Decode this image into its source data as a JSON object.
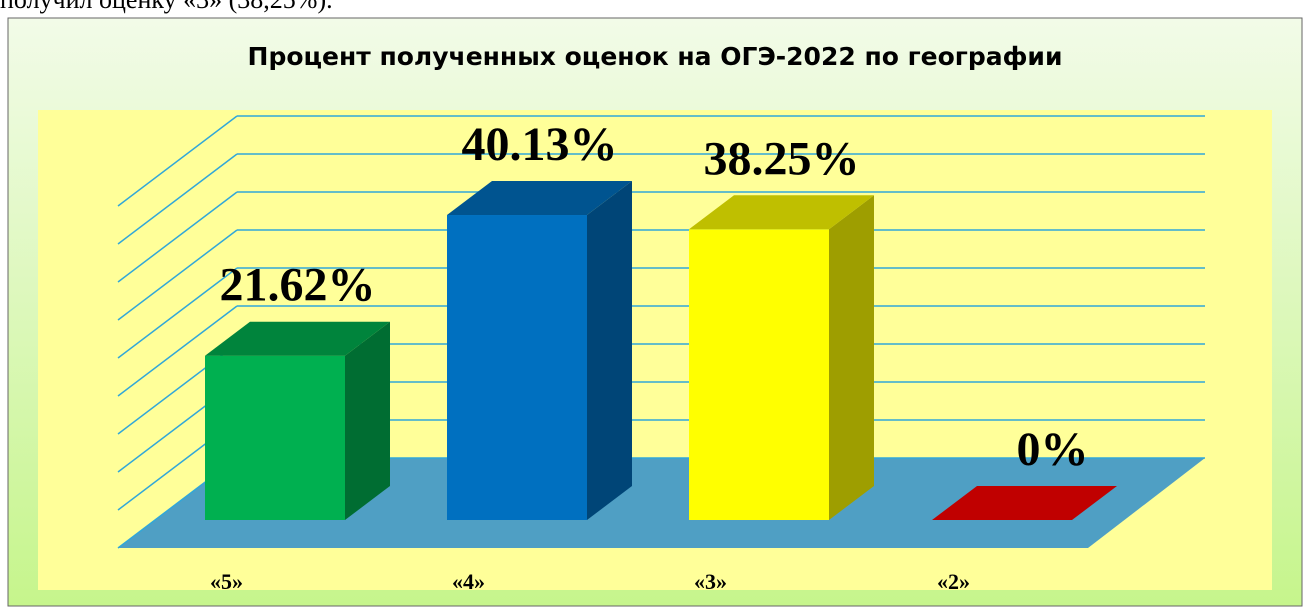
{
  "caption": "получил оценку «3» (38,25%).",
  "chart_data": {
    "type": "bar3d",
    "title": "Процент полученных оценок на ОГЭ-2022 по географии",
    "categories": [
      "«5»",
      "«4»",
      "«3»",
      "«2»"
    ],
    "values": [
      21.62,
      40.13,
      38.25,
      0
    ],
    "value_labels": [
      "21.62%",
      "40.13%",
      "38.25%",
      "0%"
    ],
    "colors": [
      "#00b050",
      "#0070c0",
      "#ffff00",
      "#c00000"
    ],
    "ylim": [
      0,
      45
    ],
    "yticks": [
      0,
      5,
      10,
      15,
      20,
      25,
      30,
      35,
      40,
      45
    ],
    "grid": true
  }
}
